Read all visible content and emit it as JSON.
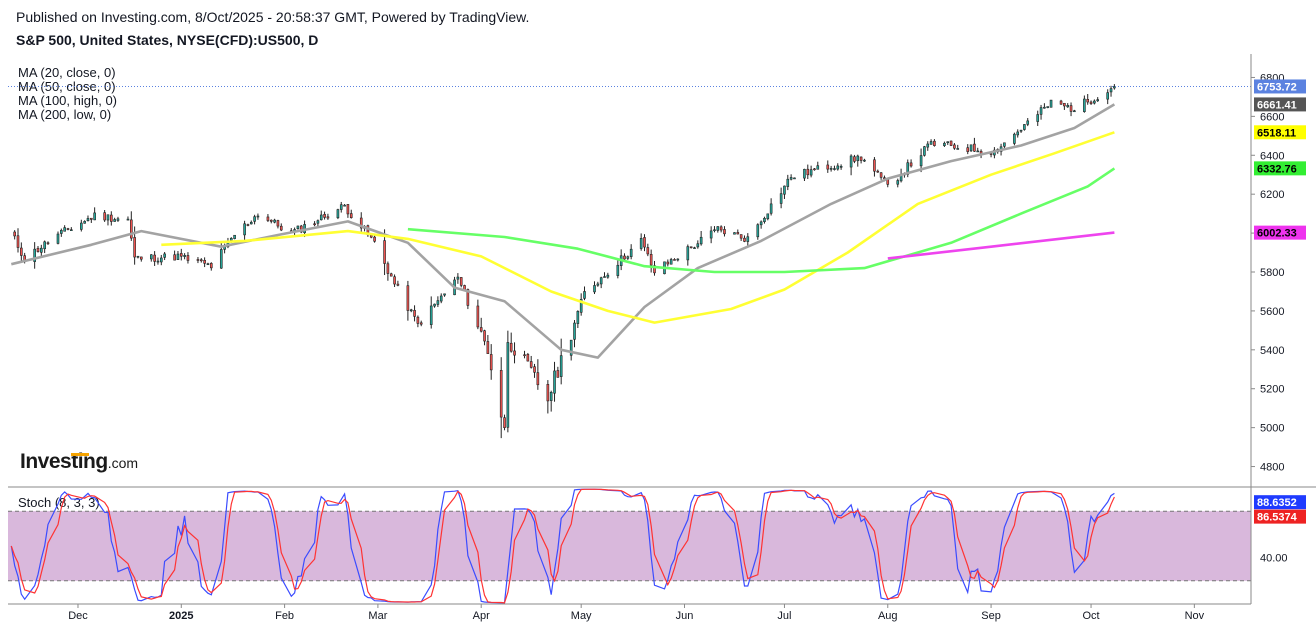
{
  "header": {
    "published": "Published on Investing.com, 8/Oct/2025 - 20:58:37 GMT, Powered by TradingView.",
    "symbol": "S&P 500, United States, NYSE(CFD):US500, D"
  },
  "legend": {
    "ma": [
      "MA (20, close, 0)",
      "MA (50, close, 0)",
      "MA (100, high, 0)",
      "MA (200, low, 0)"
    ],
    "stoch": "Stoch (8, 3, 3)"
  },
  "logo": {
    "name": "Investing",
    "suffix": ".com"
  },
  "colors": {
    "up": "#26a69a",
    "down": "#ef5350",
    "ma20": "#a3a3a3",
    "ma50": "#ffff33",
    "ma100": "#66ff66",
    "ma200": "#ee44ee",
    "stoch_k": "#3b4cff",
    "stoch_d": "#ff3333",
    "stoch_band": "#d9b8dc",
    "last_price": "#5b82e0"
  },
  "chart_data": [
    {
      "type": "candlestick",
      "title": "S&P 500, United States, NYSE(CFD):US500, D",
      "ylim": [
        4700,
        6900
      ],
      "yticks": [
        4800,
        5000,
        5200,
        5400,
        5600,
        5800,
        6000,
        6200,
        6400,
        6600,
        6800
      ],
      "xticks": [
        {
          "label": "Dec",
          "date": "2024-12-01"
        },
        {
          "label": "2025",
          "date": "2025-01-01"
        },
        {
          "label": "Feb",
          "date": "2025-02-01"
        },
        {
          "label": "Mar",
          "date": "2025-03-01"
        },
        {
          "label": "Apr",
          "date": "2025-04-01"
        },
        {
          "label": "May",
          "date": "2025-05-01"
        },
        {
          "label": "Jun",
          "date": "2025-06-01"
        },
        {
          "label": "Jul",
          "date": "2025-07-01"
        },
        {
          "label": "Aug",
          "date": "2025-08-01"
        },
        {
          "label": "Sep",
          "date": "2025-09-01"
        },
        {
          "label": "Oct",
          "date": "2025-10-01"
        },
        {
          "label": "Nov",
          "date": "2025-11-01"
        }
      ],
      "closes": [
        {
          "date": "2024-11-11",
          "value": 6000
        },
        {
          "date": "2024-11-15",
          "value": 5870
        },
        {
          "date": "2024-11-25",
          "value": 5990
        },
        {
          "date": "2024-12-06",
          "value": 6090
        },
        {
          "date": "2024-12-16",
          "value": 6070
        },
        {
          "date": "2024-12-18",
          "value": 5870
        },
        {
          "date": "2024-12-31",
          "value": 5880
        },
        {
          "date": "2025-01-10",
          "value": 5830
        },
        {
          "date": "2025-01-17",
          "value": 5990
        },
        {
          "date": "2025-01-24",
          "value": 6100
        },
        {
          "date": "2025-02-03",
          "value": 6000
        },
        {
          "date": "2025-02-19",
          "value": 6140
        },
        {
          "date": "2025-02-28",
          "value": 5950
        },
        {
          "date": "2025-03-06",
          "value": 5740
        },
        {
          "date": "2025-03-13",
          "value": 5530
        },
        {
          "date": "2025-03-25",
          "value": 5770
        },
        {
          "date": "2025-04-03",
          "value": 5400
        },
        {
          "date": "2025-04-08",
          "value": 4980
        },
        {
          "date": "2025-04-09",
          "value": 5460
        },
        {
          "date": "2025-04-21",
          "value": 5150
        },
        {
          "date": "2025-05-02",
          "value": 5690
        },
        {
          "date": "2025-05-12",
          "value": 5850
        },
        {
          "date": "2025-05-19",
          "value": 5960
        },
        {
          "date": "2025-05-23",
          "value": 5800
        },
        {
          "date": "2025-06-11",
          "value": 6020
        },
        {
          "date": "2025-06-20",
          "value": 5970
        },
        {
          "date": "2025-07-03",
          "value": 6290
        },
        {
          "date": "2025-07-24",
          "value": 6390
        },
        {
          "date": "2025-08-01",
          "value": 6240
        },
        {
          "date": "2025-08-14",
          "value": 6460
        },
        {
          "date": "2025-09-02",
          "value": 6420
        },
        {
          "date": "2025-09-19",
          "value": 6670
        },
        {
          "date": "2025-09-26",
          "value": 6640
        },
        {
          "date": "2025-10-08",
          "value": 6753.72
        }
      ],
      "series": [
        {
          "name": "MA (20, close, 0)",
          "points": [
            {
              "date": "2024-11-11",
              "value": 5840
            },
            {
              "date": "2024-12-05",
              "value": 5940
            },
            {
              "date": "2024-12-20",
              "value": 6010
            },
            {
              "date": "2025-01-13",
              "value": 5930
            },
            {
              "date": "2025-01-30",
              "value": 5990
            },
            {
              "date": "2025-02-20",
              "value": 6060
            },
            {
              "date": "2025-03-10",
              "value": 5950
            },
            {
              "date": "2025-03-24",
              "value": 5720
            },
            {
              "date": "2025-04-08",
              "value": 5650
            },
            {
              "date": "2025-04-25",
              "value": 5400
            },
            {
              "date": "2025-05-06",
              "value": 5360
            },
            {
              "date": "2025-05-20",
              "value": 5620
            },
            {
              "date": "2025-06-05",
              "value": 5820
            },
            {
              "date": "2025-06-24",
              "value": 5960
            },
            {
              "date": "2025-07-15",
              "value": 6150
            },
            {
              "date": "2025-08-01",
              "value": 6280
            },
            {
              "date": "2025-08-20",
              "value": 6370
            },
            {
              "date": "2025-09-10",
              "value": 6450
            },
            {
              "date": "2025-09-26",
              "value": 6540
            },
            {
              "date": "2025-10-08",
              "value": 6661.41
            }
          ]
        },
        {
          "name": "MA (50, close, 0)",
          "points": [
            {
              "date": "2024-12-26",
              "value": 5940
            },
            {
              "date": "2025-01-20",
              "value": 5960
            },
            {
              "date": "2025-02-20",
              "value": 6010
            },
            {
              "date": "2025-03-10",
              "value": 5970
            },
            {
              "date": "2025-04-01",
              "value": 5880
            },
            {
              "date": "2025-04-22",
              "value": 5700
            },
            {
              "date": "2025-05-09",
              "value": 5600
            },
            {
              "date": "2025-05-23",
              "value": 5540
            },
            {
              "date": "2025-06-15",
              "value": 5610
            },
            {
              "date": "2025-07-01",
              "value": 5710
            },
            {
              "date": "2025-07-20",
              "value": 5900
            },
            {
              "date": "2025-08-10",
              "value": 6150
            },
            {
              "date": "2025-09-01",
              "value": 6300
            },
            {
              "date": "2025-09-20",
              "value": 6410
            },
            {
              "date": "2025-10-08",
              "value": 6518.11
            }
          ]
        },
        {
          "name": "MA (100, high, 0)",
          "points": [
            {
              "date": "2025-03-10",
              "value": 6020
            },
            {
              "date": "2025-04-08",
              "value": 5980
            },
            {
              "date": "2025-04-30",
              "value": 5920
            },
            {
              "date": "2025-05-20",
              "value": 5830
            },
            {
              "date": "2025-06-10",
              "value": 5800
            },
            {
              "date": "2025-07-01",
              "value": 5800
            },
            {
              "date": "2025-07-25",
              "value": 5820
            },
            {
              "date": "2025-08-20",
              "value": 5950
            },
            {
              "date": "2025-09-10",
              "value": 6100
            },
            {
              "date": "2025-09-30",
              "value": 6240
            },
            {
              "date": "2025-10-08",
              "value": 6332.76
            }
          ]
        },
        {
          "name": "MA (200, low, 0)",
          "points": [
            {
              "date": "2025-08-01",
              "value": 5870
            },
            {
              "date": "2025-09-01",
              "value": 5930
            },
            {
              "date": "2025-10-08",
              "value": 6002.33
            }
          ]
        }
      ],
      "last_values": [
        {
          "label": "6753.72",
          "value": 6753.72,
          "role": "price"
        },
        {
          "label": "6661.41",
          "value": 6661.41,
          "role": "ma20"
        },
        {
          "label": "6518.11",
          "value": 6518.11,
          "role": "ma50"
        },
        {
          "label": "6332.76",
          "value": 6332.76,
          "role": "ma100"
        },
        {
          "label": "6002.33",
          "value": 6002.33,
          "role": "ma200"
        }
      ]
    },
    {
      "type": "line",
      "title": "Stoch (8, 3, 3)",
      "ylim": [
        0,
        100
      ],
      "yticks": [
        40
      ],
      "levels": [
        20,
        80
      ],
      "last_values": [
        {
          "label": "88.6352",
          "value": 88.6352,
          "role": "k"
        },
        {
          "label": "86.5374",
          "value": 86.5374,
          "role": "d"
        }
      ]
    }
  ]
}
